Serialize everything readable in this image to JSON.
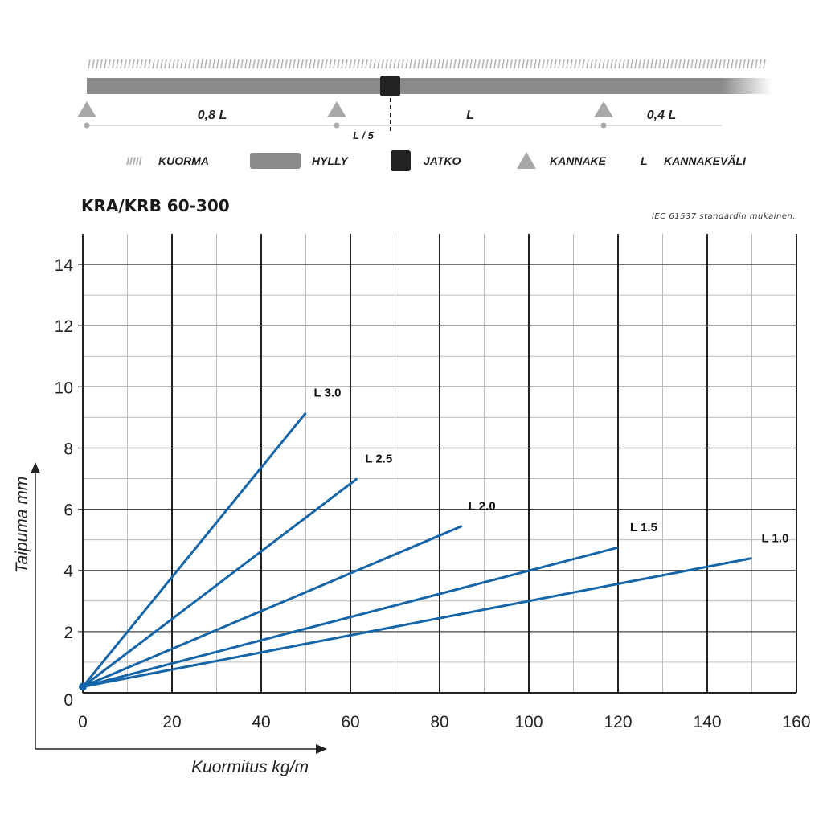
{
  "diagram": {
    "labels": {
      "span_left": "0,8 L",
      "span_mid": "L",
      "span_right": "0,4 L",
      "fifth": "L / 5"
    },
    "legend": [
      {
        "key": "load",
        "symbol_text": "IIIII",
        "label": "KUORMA"
      },
      {
        "key": "shelf",
        "label": "HYLLY"
      },
      {
        "key": "joint",
        "label": "JATKO"
      },
      {
        "key": "bracket",
        "label": "KANNAKE"
      },
      {
        "key": "span",
        "symbol_text": "L",
        "label": "KANNAKEVÄLI"
      }
    ],
    "colors": {
      "shelf": "#8a8a8a",
      "joint": "#222222",
      "bracket": "#a8a8a8",
      "load": "#b5b5b5"
    }
  },
  "chart_data": {
    "type": "line",
    "title": "KRA/KRB 60-300",
    "note": "IEC 61537 standardin mukainen.",
    "xlabel": "Kuormitus kg/m",
    "ylabel": "Taipuma mm",
    "xlim": [
      0,
      160
    ],
    "ylim": [
      0,
      15
    ],
    "xticks": [
      0,
      20,
      40,
      60,
      80,
      100,
      120,
      140,
      160
    ],
    "yticks": [
      0,
      2,
      4,
      6,
      8,
      10,
      12,
      14
    ],
    "grid": true,
    "line_color": "#1565a8",
    "series": [
      {
        "name": "L 3.0",
        "x": [
          0,
          50
        ],
        "y": [
          0.2,
          9.15
        ]
      },
      {
        "name": "L 2.5",
        "x": [
          0,
          61.5
        ],
        "y": [
          0.2,
          7.0
        ]
      },
      {
        "name": "L 2.0",
        "x": [
          0,
          85
        ],
        "y": [
          0.2,
          5.45
        ]
      },
      {
        "name": "L 1.5",
        "x": [
          0,
          120
        ],
        "y": [
          0.2,
          4.75
        ]
      },
      {
        "name": "L 1.0",
        "x": [
          0,
          150
        ],
        "y": [
          0.2,
          4.4
        ]
      }
    ]
  }
}
